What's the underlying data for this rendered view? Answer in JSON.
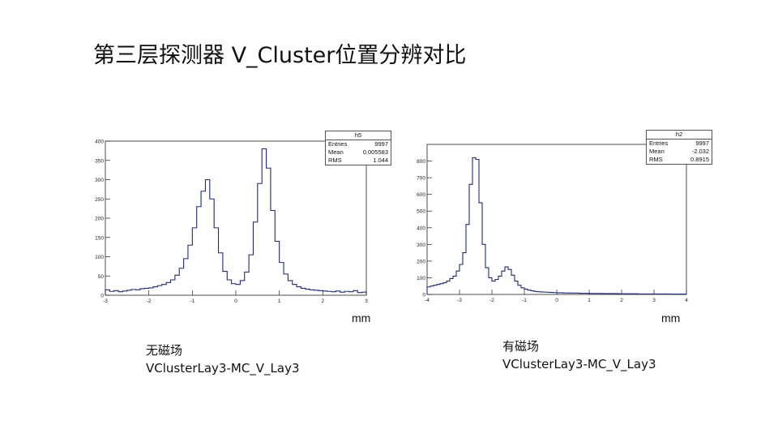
{
  "title": "第三层探测器 V_Cluster位置分辨对比",
  "chart_data": [
    {
      "type": "histogram",
      "name": "h5",
      "stats": [
        {
          "label": "Entries",
          "value": "9997"
        },
        {
          "label": "Mean",
          "value": "0.005583"
        },
        {
          "label": "RMS",
          "value": "1.044"
        }
      ],
      "xlabel": "mm",
      "xlim": [
        -3,
        3
      ],
      "ylim": [
        0,
        400
      ],
      "xticks": [
        -3,
        -2,
        -1,
        0,
        1,
        2,
        3
      ],
      "yticks": [
        0,
        50,
        100,
        150,
        200,
        250,
        300,
        350,
        400
      ],
      "x": [
        -3.0,
        -2.9,
        -2.8,
        -2.7,
        -2.6,
        -2.5,
        -2.4,
        -2.3,
        -2.2,
        -2.1,
        -2.0,
        -1.9,
        -1.8,
        -1.7,
        -1.6,
        -1.5,
        -1.4,
        -1.3,
        -1.2,
        -1.1,
        -1.0,
        -0.9,
        -0.8,
        -0.7,
        -0.6,
        -0.5,
        -0.4,
        -0.3,
        -0.2,
        -0.1,
        0.0,
        0.1,
        0.2,
        0.3,
        0.4,
        0.5,
        0.6,
        0.7,
        0.8,
        0.9,
        1.0,
        1.1,
        1.2,
        1.3,
        1.4,
        1.5,
        1.6,
        1.7,
        1.8,
        1.9,
        2.0,
        2.1,
        2.2,
        2.3,
        2.4,
        2.5,
        2.6,
        2.7,
        2.8,
        2.9
      ],
      "values": [
        14,
        10,
        12,
        9,
        11,
        13,
        15,
        14,
        17,
        18,
        19,
        22,
        25,
        28,
        33,
        40,
        52,
        70,
        95,
        130,
        175,
        230,
        270,
        300,
        250,
        175,
        110,
        62,
        40,
        30,
        28,
        38,
        60,
        105,
        190,
        290,
        380,
        330,
        220,
        140,
        85,
        55,
        38,
        28,
        22,
        18,
        16,
        14,
        13,
        12,
        11,
        10,
        9,
        11,
        8,
        10,
        9,
        12,
        7,
        8
      ],
      "caption_name": "无磁场",
      "caption_id": "VClusterLay3-MC_V_Lay3"
    },
    {
      "type": "histogram",
      "name": "h2",
      "stats": [
        {
          "label": "Entries",
          "value": "9997"
        },
        {
          "label": "Mean",
          "value": "-2.032"
        },
        {
          "label": "RMS",
          "value": "0.8915"
        }
      ],
      "xlabel": "mm",
      "xlim": [
        -4,
        4
      ],
      "ylim": [
        0,
        900
      ],
      "xticks": [
        -4,
        -3,
        -2,
        -1,
        0,
        1,
        2,
        3,
        4
      ],
      "yticks": [
        0,
        100,
        200,
        300,
        400,
        500,
        600,
        700,
        800
      ],
      "x": [
        -4.0,
        -3.9,
        -3.8,
        -3.7,
        -3.6,
        -3.5,
        -3.4,
        -3.3,
        -3.2,
        -3.1,
        -3.0,
        -2.9,
        -2.8,
        -2.7,
        -2.6,
        -2.5,
        -2.4,
        -2.3,
        -2.2,
        -2.1,
        -2.0,
        -1.9,
        -1.8,
        -1.7,
        -1.6,
        -1.5,
        -1.4,
        -1.3,
        -1.2,
        -1.1,
        -1.0,
        -0.9,
        -0.8,
        -0.7,
        -0.6,
        -0.5,
        -0.4,
        -0.3,
        -0.2,
        -0.1,
        0.0,
        0.1,
        0.2,
        0.3,
        0.4,
        0.5,
        0.6,
        0.7,
        0.8,
        0.9,
        1.0,
        1.1,
        1.2,
        1.3,
        1.4,
        1.5,
        1.6,
        1.7,
        1.8,
        1.9,
        2.0,
        2.1,
        2.2,
        2.3,
        2.4,
        2.5,
        2.6,
        2.7,
        2.8,
        2.9,
        3.0,
        3.1,
        3.2,
        3.3,
        3.4,
        3.5,
        3.6,
        3.7,
        3.8,
        3.9
      ],
      "values": [
        45,
        50,
        55,
        60,
        65,
        70,
        80,
        95,
        110,
        140,
        180,
        250,
        420,
        660,
        820,
        810,
        550,
        300,
        160,
        100,
        80,
        90,
        110,
        140,
        165,
        150,
        115,
        80,
        55,
        40,
        32,
        26,
        22,
        18,
        16,
        15,
        14,
        13,
        12,
        11,
        10,
        10,
        9,
        9,
        8,
        8,
        8,
        7,
        7,
        7,
        6,
        6,
        6,
        6,
        5,
        5,
        5,
        5,
        5,
        4,
        4,
        4,
        4,
        4,
        4,
        3,
        3,
        3,
        3,
        3,
        3,
        3,
        3,
        3,
        3,
        2,
        2,
        2,
        2,
        2
      ],
      "caption_name": "有磁场",
      "caption_id": "VClusterLay3-MC_V_Lay3"
    }
  ]
}
